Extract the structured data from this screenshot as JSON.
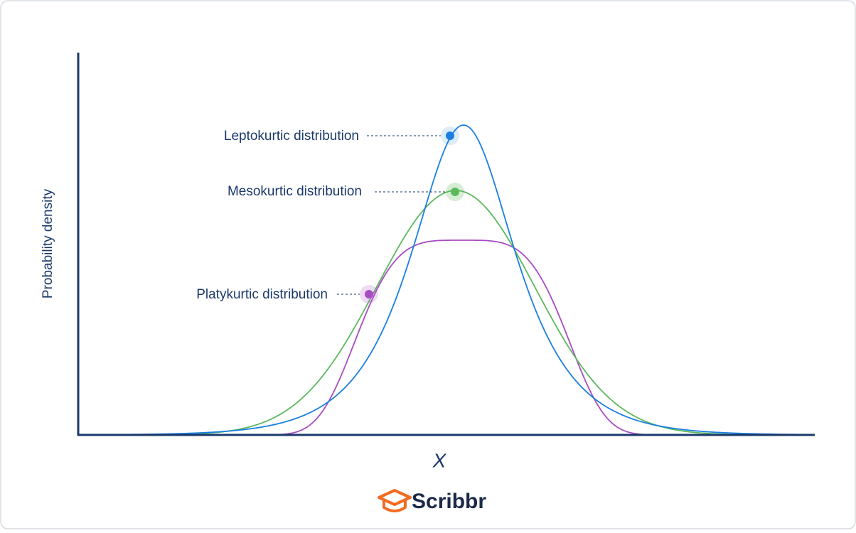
{
  "y_axis_label": "Probability density",
  "x_axis_label": "X",
  "annotations": [
    {
      "label": "Leptokurtic distribution"
    },
    {
      "label": "Mesokurtic distribution"
    },
    {
      "label": "Platykurtic distribution"
    }
  ],
  "logo": "Scribbr"
}
